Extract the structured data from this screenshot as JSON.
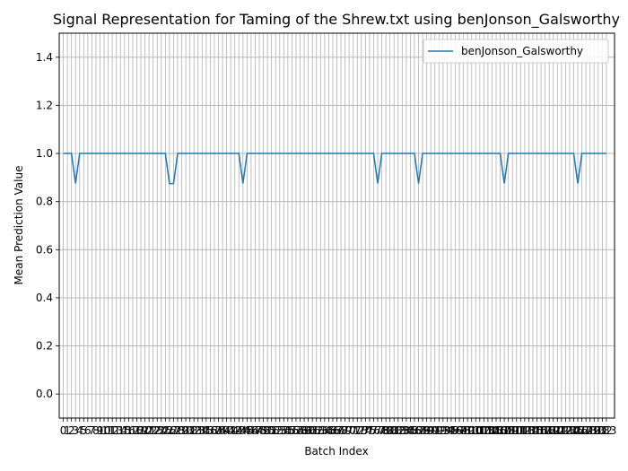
{
  "chart_data": {
    "type": "line",
    "title": "Signal Representation for Taming of the Shrew.txt using benJonson_Galsworthy",
    "xlabel": "Batch Index",
    "ylabel": "Mean Prediction Value",
    "ylim": [
      -0.1,
      1.5
    ],
    "xlim": [
      -1,
      135
    ],
    "yticks": [
      0.0,
      0.2,
      0.4,
      0.6,
      0.8,
      1.0,
      1.2,
      1.4
    ],
    "grid": true,
    "legend_position": "top-right",
    "colors": {
      "line": "#1f77b4",
      "grid": "#b0b0b0"
    },
    "series": [
      {
        "name": "benJonson_Galsworthy",
        "x_start": 0,
        "x_end": 133,
        "default_value": 1.0,
        "dips": [
          {
            "x": 3,
            "value": 0.875
          },
          {
            "x": 26,
            "value": 0.875
          },
          {
            "x": 27,
            "value": 0.875
          },
          {
            "x": 44,
            "value": 0.875
          },
          {
            "x": 77,
            "value": 0.875
          },
          {
            "x": 87,
            "value": 0.875
          },
          {
            "x": 108,
            "value": 0.875
          },
          {
            "x": 126,
            "value": 0.875
          }
        ]
      }
    ]
  }
}
